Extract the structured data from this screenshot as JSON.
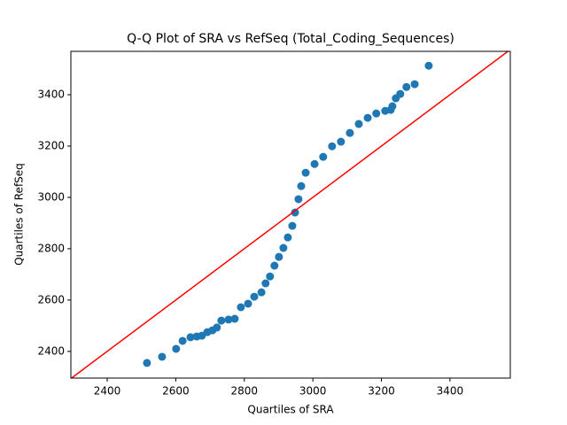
{
  "chart_data": {
    "type": "scatter",
    "title": "Q-Q Plot of SRA vs RefSeq (Total_Coding_Sequences)",
    "x_label": "Quartiles of SRA",
    "y_label": "Quartiles of RefSeq",
    "color": "#1f77b4",
    "reference_line": {
      "type": "y=x",
      "color": "#ff0000"
    },
    "x": [
      2516,
      2560,
      2601,
      2620,
      2643,
      2661,
      2676,
      2692,
      2707,
      2720,
      2733,
      2754,
      2772,
      2790,
      2811,
      2829,
      2850,
      2862,
      2875,
      2888,
      2901,
      2914,
      2927,
      2940,
      2948,
      2958,
      2966,
      2979,
      3005,
      3030,
      3056,
      3082,
      3108,
      3134,
      3160,
      3185,
      3211,
      3227,
      3232,
      3242,
      3255,
      3273,
      3297,
      3338
    ],
    "values": [
      2355,
      2379,
      2410,
      2441,
      2455,
      2458,
      2461,
      2475,
      2482,
      2493,
      2520,
      2524,
      2527,
      2572,
      2586,
      2613,
      2630,
      2665,
      2692,
      2734,
      2768,
      2803,
      2844,
      2889,
      2941,
      2993,
      3044,
      3096,
      3130,
      3158,
      3199,
      3217,
      3251,
      3286,
      3310,
      3327,
      3337,
      3341,
      3355,
      3386,
      3403,
      3430,
      3441,
      3513
    ],
    "xlim": [
      2294,
      3576
    ],
    "ylim": [
      2296,
      3569
    ],
    "xticks": [
      2400,
      2600,
      2800,
      3000,
      3200,
      3400
    ],
    "yticks": [
      2400,
      2600,
      2800,
      3000,
      3200,
      3400
    ]
  }
}
